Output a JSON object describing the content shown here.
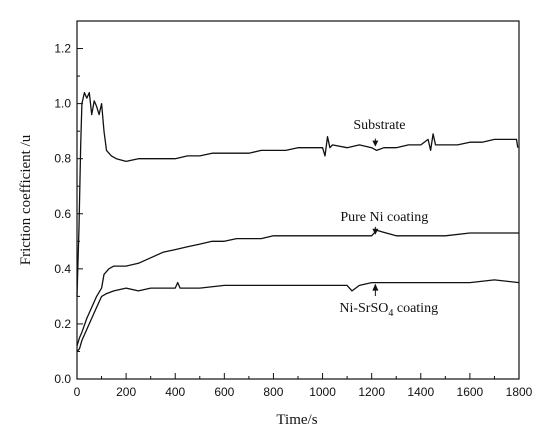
{
  "chart_data": {
    "type": "line",
    "xlabel": "Time/s",
    "ylabel": "Friction coefficient /u",
    "xlim": [
      0,
      1800
    ],
    "ylim": [
      0.0,
      1.3
    ],
    "xticks": [
      0,
      200,
      400,
      600,
      800,
      1000,
      1200,
      1400,
      1600,
      1800
    ],
    "yticks": [
      0.0,
      0.2,
      0.4,
      0.6,
      0.8,
      1.0,
      1.2
    ],
    "grid": false,
    "line_color": "#111111",
    "series": [
      {
        "name": "Substrate",
        "x": [
          0,
          8,
          15,
          20,
          30,
          40,
          50,
          60,
          70,
          80,
          90,
          100,
          110,
          120,
          140,
          160,
          200,
          250,
          300,
          350,
          400,
          450,
          500,
          550,
          600,
          650,
          700,
          750,
          800,
          850,
          900,
          950,
          1000,
          1010,
          1020,
          1030,
          1040,
          1100,
          1150,
          1200,
          1220,
          1250,
          1300,
          1350,
          1400,
          1430,
          1440,
          1450,
          1460,
          1500,
          1550,
          1600,
          1650,
          1700,
          1750,
          1790,
          1795
        ],
        "values": [
          0.3,
          0.55,
          0.85,
          1.0,
          1.04,
          1.02,
          1.04,
          0.96,
          1.01,
          0.99,
          0.96,
          1.0,
          0.9,
          0.83,
          0.81,
          0.8,
          0.79,
          0.8,
          0.8,
          0.8,
          0.8,
          0.81,
          0.81,
          0.82,
          0.82,
          0.82,
          0.82,
          0.83,
          0.83,
          0.83,
          0.84,
          0.84,
          0.84,
          0.81,
          0.88,
          0.84,
          0.85,
          0.84,
          0.85,
          0.84,
          0.83,
          0.84,
          0.84,
          0.85,
          0.85,
          0.87,
          0.83,
          0.89,
          0.85,
          0.85,
          0.85,
          0.86,
          0.86,
          0.87,
          0.87,
          0.87,
          0.84
        ]
      },
      {
        "name": "Pure Ni coating",
        "x": [
          0,
          10,
          20,
          40,
          60,
          80,
          100,
          110,
          130,
          150,
          200,
          250,
          300,
          350,
          400,
          450,
          500,
          550,
          600,
          650,
          700,
          750,
          800,
          850,
          900,
          1000,
          1100,
          1200,
          1220,
          1300,
          1400,
          1500,
          1600,
          1700,
          1800
        ],
        "values": [
          0.12,
          0.15,
          0.17,
          0.22,
          0.26,
          0.3,
          0.33,
          0.38,
          0.4,
          0.41,
          0.41,
          0.42,
          0.44,
          0.46,
          0.47,
          0.48,
          0.49,
          0.5,
          0.5,
          0.51,
          0.51,
          0.51,
          0.52,
          0.52,
          0.52,
          0.52,
          0.52,
          0.52,
          0.54,
          0.52,
          0.52,
          0.52,
          0.53,
          0.53,
          0.53
        ]
      },
      {
        "name": "Ni-SrSO₄ coating",
        "x": [
          0,
          10,
          20,
          40,
          60,
          80,
          100,
          120,
          150,
          200,
          250,
          300,
          350,
          400,
          410,
          420,
          450,
          500,
          600,
          700,
          800,
          900,
          1000,
          1050,
          1100,
          1120,
          1150,
          1200,
          1250,
          1300,
          1400,
          1500,
          1600,
          1700,
          1800
        ],
        "values": [
          0.1,
          0.11,
          0.14,
          0.18,
          0.22,
          0.26,
          0.3,
          0.31,
          0.32,
          0.33,
          0.32,
          0.33,
          0.33,
          0.33,
          0.35,
          0.33,
          0.33,
          0.33,
          0.34,
          0.34,
          0.34,
          0.34,
          0.34,
          0.34,
          0.34,
          0.32,
          0.34,
          0.35,
          0.35,
          0.35,
          0.35,
          0.35,
          0.35,
          0.36,
          0.35
        ]
      }
    ],
    "annotations": {
      "substrate": {
        "text": "Substrate",
        "x": 1215,
        "y": 0.84
      },
      "pure_ni": {
        "text": "Pure Ni coating",
        "x": 1215,
        "y": 0.52
      },
      "ni_srso4": {
        "text_main": "Ni-SrSO",
        "text_sub": "4",
        "text_tail": " coating",
        "x": 1215,
        "y": 0.35
      }
    }
  }
}
